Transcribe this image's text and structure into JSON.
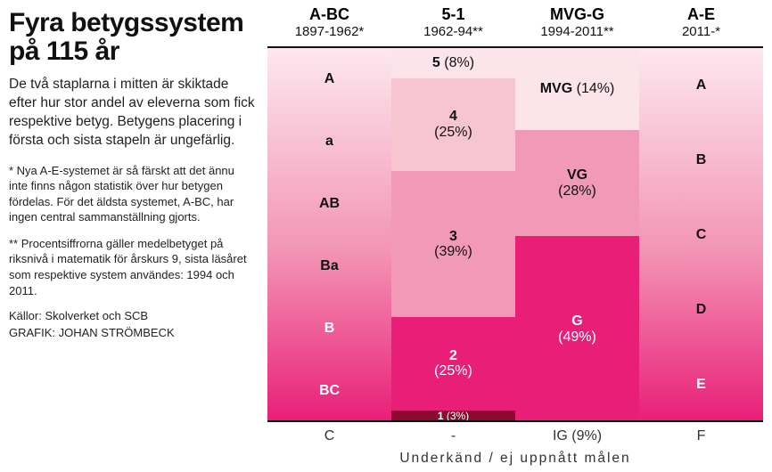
{
  "title": "Fyra betygs­system på 115 år",
  "intro": "De två staplarna i mitten är skiktade efter hur stor andel av eleverna som fick respektive betyg. Betygens placering i första och sista stapeln är ungefärlig.",
  "note1": "* Nya A-E-systemet är så färskt att det ännu inte finns någon statistik över hur betygen fördelas. För det äldsta systemet, A-BC, har ingen central sammanställning gjorts.",
  "note2": "** Procentsiffrorna gäller medel­betyget på riksnivå i matematik för årskurs 9, sista läsåret som respektive system användes: 1994 och 2011.",
  "sources": "Källor: Skolverket och SCB",
  "credit": "GRAFIK: JOHAN STRÖMBECK",
  "fail_caption": "Underkänd / ej uppnått målen",
  "palette": {
    "c1": "#fbe5eb",
    "c2": "#f7c4d2",
    "c3": "#f199b6",
    "c4": "#ec5f93",
    "c5": "#e91e77",
    "c6": "#8a0b2e",
    "grad_top": "#fde8ee",
    "grad_mid": "#f393b4",
    "grad_bot": "#e91e77"
  },
  "systems": [
    {
      "name": "A-BC",
      "years": "1897-1962*",
      "type": "gradient_labels",
      "labels": [
        "A",
        "a",
        "AB",
        "Ba",
        "B",
        "BC"
      ],
      "fail": "C"
    },
    {
      "name": "5-1",
      "years": "1962-94**",
      "type": "stacked",
      "segments": [
        {
          "label": "5",
          "pct": 8,
          "color_key": "c1",
          "text": "dark",
          "inline": true
        },
        {
          "label": "4",
          "pct": 25,
          "color_key": "c2",
          "text": "dark"
        },
        {
          "label": "3",
          "pct": 39,
          "color_key": "c3",
          "text": "dark"
        },
        {
          "label": "2",
          "pct": 25,
          "color_key": "c5",
          "text": "light"
        },
        {
          "label": "1",
          "pct": 3,
          "color_key": "c6",
          "text": "light",
          "inline": true
        }
      ],
      "fail": "-"
    },
    {
      "name": "MVG-G",
      "years": "1994-2011**",
      "type": "stacked",
      "segments": [
        {
          "label": "MVG",
          "pct": 14,
          "color_key": "c1",
          "text": "dark",
          "inline": true,
          "scale": 1.54
        },
        {
          "label": "VG",
          "pct": 28,
          "color_key": "c3",
          "text": "dark",
          "scale": 1.0
        },
        {
          "label": "G",
          "pct": 49,
          "color_key": "c5",
          "text": "light",
          "scale": 1.0
        }
      ],
      "fail": "IG (9%)"
    },
    {
      "name": "A-E",
      "years": "2011-*",
      "type": "gradient_labels",
      "labels": [
        "A",
        "B",
        "C",
        "D",
        "E"
      ],
      "fail": "F"
    }
  ]
}
